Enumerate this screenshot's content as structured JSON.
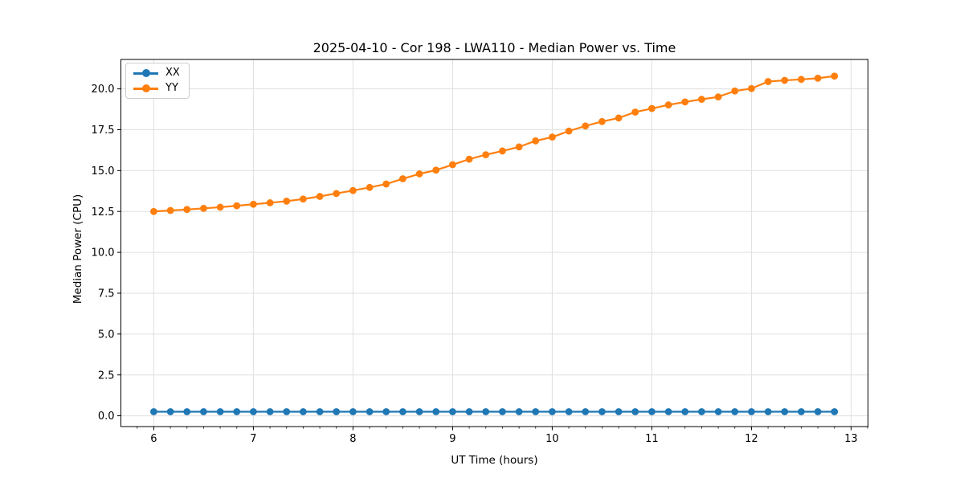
{
  "chart_data": {
    "type": "line",
    "title": "2025-04-10 - Cor 198 - LWA110 - Median Power vs. Time",
    "xlabel": "UT Time (hours)",
    "ylabel": "Median Power (CPU)",
    "xlim": [
      5.67,
      13.17
    ],
    "ylim": [
      -0.66,
      21.8
    ],
    "xticks": [
      6,
      7,
      8,
      9,
      10,
      11,
      12,
      13
    ],
    "yticks": [
      0.0,
      2.5,
      5.0,
      7.5,
      10.0,
      12.5,
      15.0,
      17.5,
      20.0
    ],
    "ytick_labels": [
      "0.0",
      "2.5",
      "5.0",
      "7.5",
      "10.0",
      "12.5",
      "15.0",
      "17.5",
      "20.0"
    ],
    "x_minor_tick_step": 0.1667,
    "grid": true,
    "legend_position": "upper left",
    "x": [
      6.0,
      6.167,
      6.333,
      6.5,
      6.667,
      6.833,
      7.0,
      7.167,
      7.333,
      7.5,
      7.667,
      7.833,
      8.0,
      8.167,
      8.333,
      8.5,
      8.667,
      8.833,
      9.0,
      9.167,
      9.333,
      9.5,
      9.667,
      9.833,
      10.0,
      10.167,
      10.333,
      10.5,
      10.667,
      10.833,
      11.0,
      11.167,
      11.333,
      11.5,
      11.667,
      11.833,
      12.0,
      12.167,
      12.333,
      12.5,
      12.667,
      12.833
    ],
    "series": [
      {
        "name": "XX",
        "color": "#1f77b4",
        "marker": "circle",
        "values": [
          0.25,
          0.25,
          0.25,
          0.25,
          0.25,
          0.25,
          0.25,
          0.25,
          0.25,
          0.25,
          0.25,
          0.25,
          0.25,
          0.25,
          0.25,
          0.25,
          0.25,
          0.25,
          0.25,
          0.25,
          0.25,
          0.25,
          0.25,
          0.25,
          0.25,
          0.25,
          0.25,
          0.25,
          0.25,
          0.25,
          0.25,
          0.25,
          0.25,
          0.25,
          0.25,
          0.25,
          0.25,
          0.25,
          0.25,
          0.25,
          0.25,
          0.25
        ]
      },
      {
        "name": "YY",
        "color": "#ff7f0e",
        "marker": "circle",
        "values": [
          12.5,
          12.56,
          12.62,
          12.69,
          12.76,
          12.85,
          12.94,
          13.03,
          13.13,
          13.26,
          13.42,
          13.6,
          13.78,
          13.97,
          14.18,
          14.5,
          14.8,
          15.03,
          15.36,
          15.7,
          15.97,
          16.2,
          16.45,
          16.82,
          17.05,
          17.42,
          17.73,
          18.0,
          18.22,
          18.58,
          18.8,
          19.02,
          19.2,
          19.36,
          19.51,
          19.87,
          20.02,
          20.45,
          20.52,
          20.58,
          20.65,
          20.78
        ]
      }
    ],
    "colors": {
      "grid": "#e0e0e0",
      "spine": "#000000",
      "background": "#ffffff"
    }
  }
}
